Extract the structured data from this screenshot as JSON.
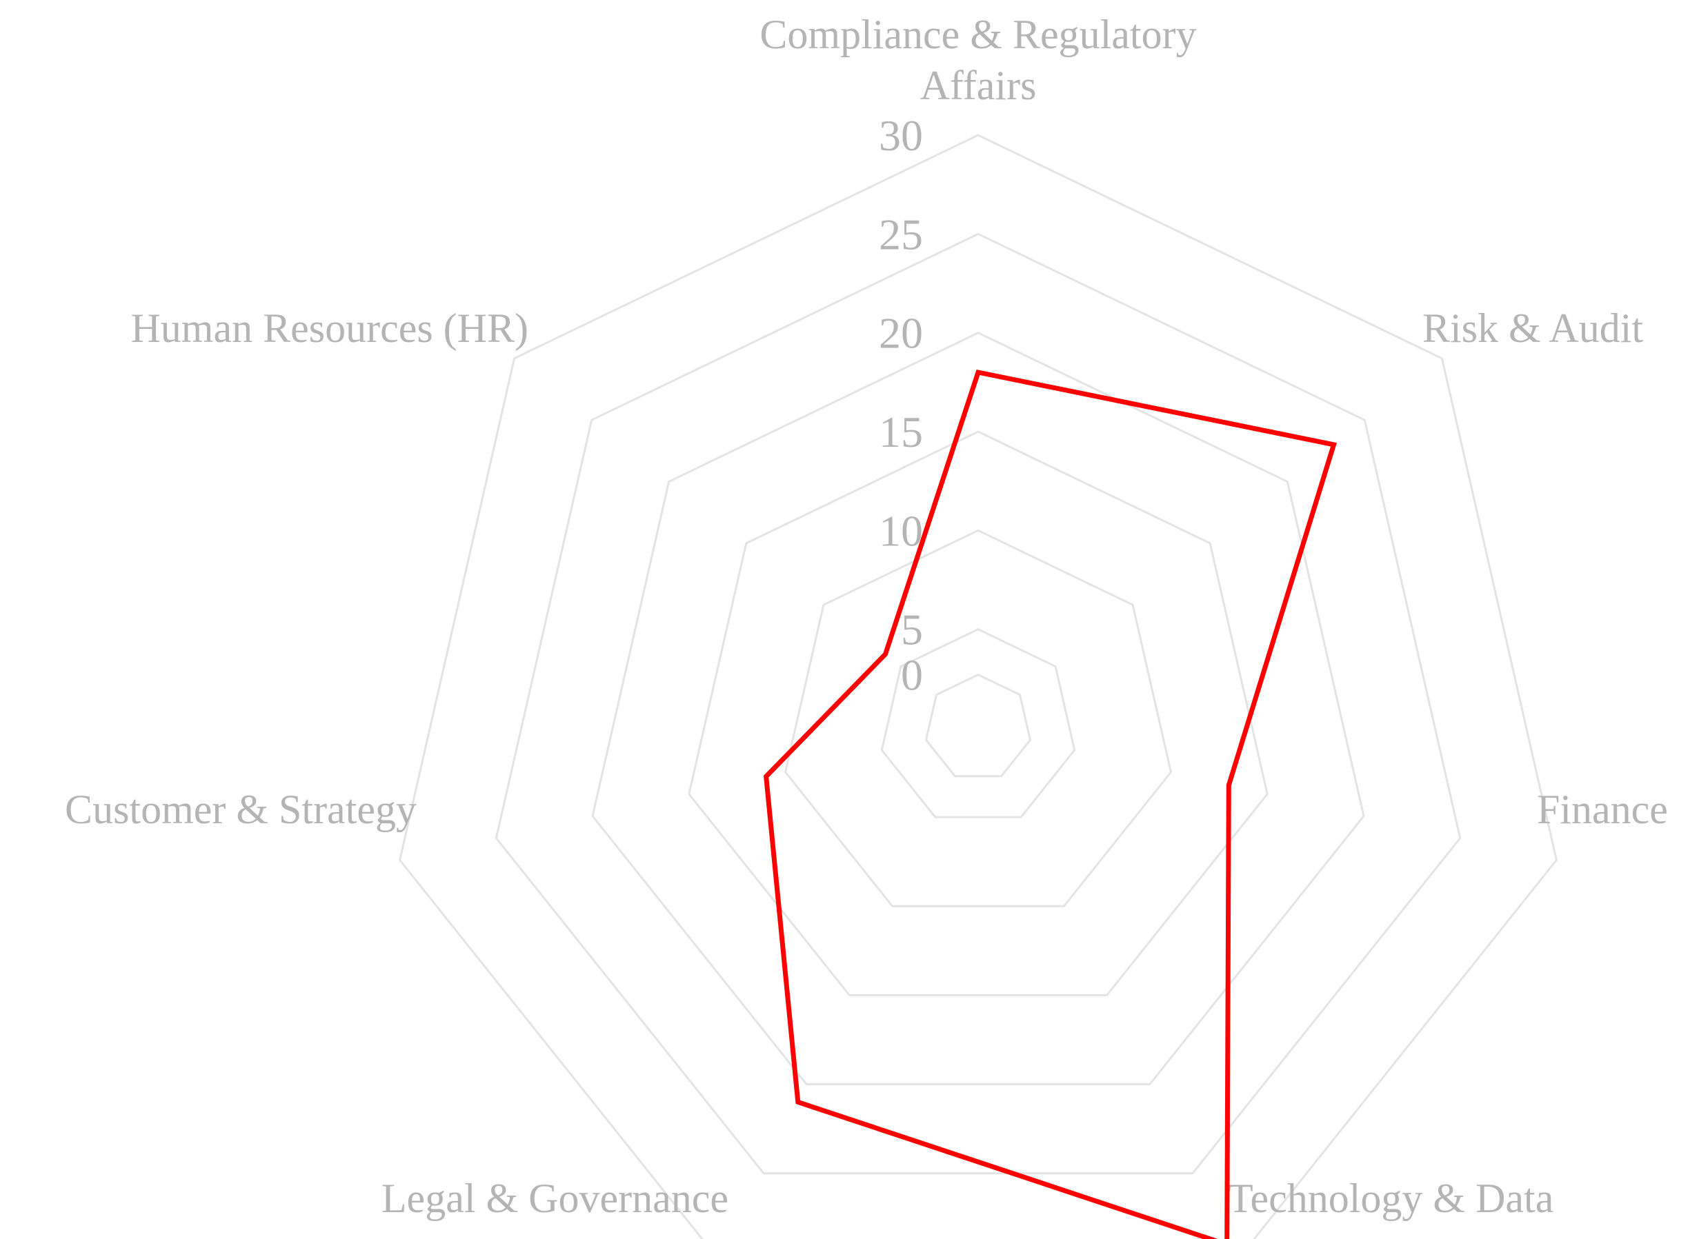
{
  "chart_data": {
    "type": "radar",
    "title": "",
    "categories": [
      "Compliance & Regulatory Affairs",
      "Risk & Audit",
      "Finance",
      "Technology & Data",
      "Legal & Governance",
      "Customer & Strategy",
      "Human Resources (HR)"
    ],
    "category_lines": [
      [
        "Compliance & Regulatory",
        "Affairs"
      ],
      [
        "Risk & Audit"
      ],
      [
        "Finance"
      ],
      [
        "Technology & Data"
      ],
      [
        "Legal & Governance"
      ],
      [
        "Customer & Strategy"
      ],
      [
        "Human Resources (HR)"
      ]
    ],
    "series": [
      {
        "values": [
          18,
          23,
          13,
          29,
          21,
          11,
          6
        ],
        "color": "#ff0000"
      }
    ],
    "rlim": [
      0,
      30
    ],
    "ticks": [
      0,
      5,
      10,
      15,
      20,
      25,
      30
    ],
    "tick_labels": [
      "0",
      "5",
      "10",
      "15",
      "20",
      "25",
      "30"
    ],
    "grid": true,
    "grid_color": "#e3e3e3",
    "label_color": "#b4b4b4",
    "legend": "none"
  }
}
